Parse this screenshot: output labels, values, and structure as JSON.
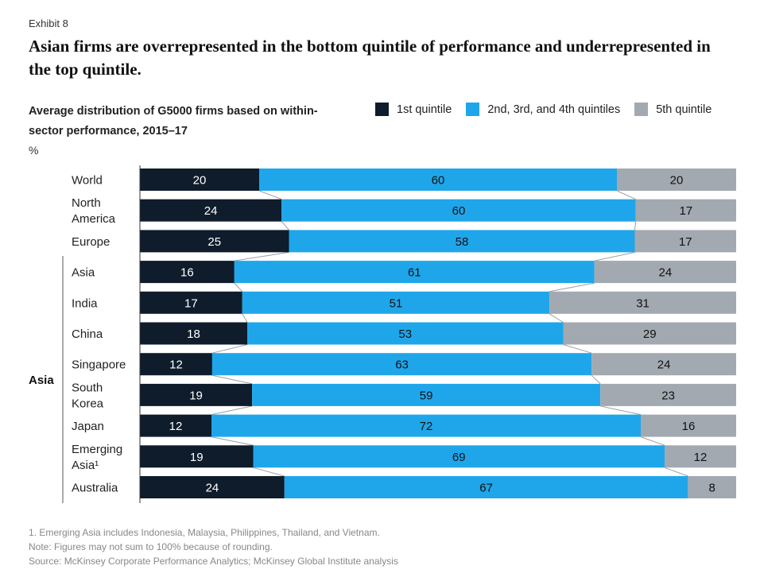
{
  "header": {
    "exhibit": "Exhibit 8",
    "title": "Asian firms are overrepresented in the bottom quintile of performance and underrepresented in the top quintile.",
    "subtitle": "Average distribution of G5000 firms based on within-sector performance, 2015–17",
    "unit": "%"
  },
  "legend": [
    {
      "label": "1st quintile",
      "color": "#0f1c2b"
    },
    {
      "label": "2nd, 3rd, and 4th quintiles",
      "color": "#1fa6ea"
    },
    {
      "label": "5th quintile",
      "color": "#a3a9b0"
    }
  ],
  "chart_data": {
    "type": "bar",
    "orientation": "horizontal",
    "stacked": true,
    "categories": [
      [
        "World"
      ],
      [
        "North",
        "America"
      ],
      [
        "Europe"
      ],
      [
        "Asia"
      ],
      [
        "India"
      ],
      [
        "China"
      ],
      [
        "Singapore"
      ],
      [
        "South",
        "Korea"
      ],
      [
        "Japan"
      ],
      [
        "Emerging",
        "Asia¹"
      ],
      [
        "Australia"
      ]
    ],
    "series": [
      {
        "name": "1st quintile",
        "color": "#0f1c2b",
        "label_color": "#ffffff",
        "values": [
          20,
          24,
          25,
          16,
          17,
          18,
          12,
          19,
          12,
          19,
          24
        ]
      },
      {
        "name": "2nd, 3rd, and 4th quintiles",
        "color": "#1fa6ea",
        "label_color": "#111111",
        "values": [
          60,
          60,
          58,
          61,
          51,
          53,
          63,
          59,
          72,
          69,
          67
        ]
      },
      {
        "name": "5th quintile",
        "color": "#a3a9b0",
        "label_color": "#111111",
        "values": [
          20,
          17,
          17,
          24,
          31,
          29,
          24,
          23,
          16,
          12,
          8
        ]
      }
    ],
    "group": {
      "label": "Asia",
      "from": 3,
      "to": 10
    }
  },
  "footnotes": [
    "1. Emerging Asia includes Indonesia, Malaysia, Philippines, Thailand, and Vietnam.",
    "Note: Figures may not sum to 100% because of rounding.",
    "Source: McKinsey Corporate Performance Analytics; McKinsey Global Institute analysis"
  ]
}
